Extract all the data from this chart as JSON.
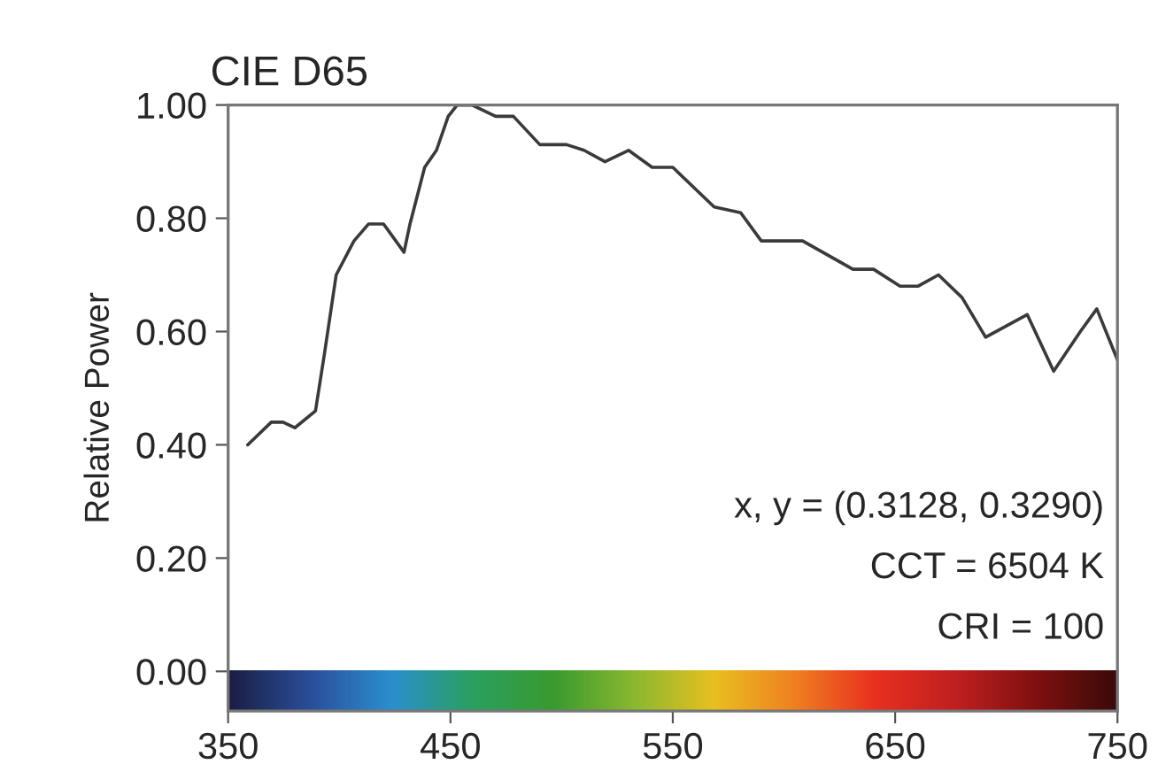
{
  "chart_data": {
    "type": "line",
    "title": "CIE D65",
    "ylabel": "Relative Power",
    "x": [
      358.8,
      369.4,
      374.7,
      380,
      389.3,
      393.3,
      398.6,
      406.6,
      413.2,
      419.9,
      429.1,
      431.8,
      438.4,
      443.7,
      449,
      453,
      459.7,
      470.3,
      478.3,
      490.2,
      502.2,
      510.1,
      519.5,
      530.1,
      540.7,
      550,
      568.6,
      580.5,
      589.8,
      608.4,
      631,
      640.3,
      652.2,
      660.2,
      669.5,
      680.1,
      690.7,
      709.4,
      721.3,
      733.3,
      740.7,
      750
    ],
    "series": [
      {
        "color": "#3a3a3a",
        "values": [
          0.4,
          0.44,
          0.44,
          0.43,
          0.46,
          0.56,
          0.7,
          0.76,
          0.79,
          0.79,
          0.74,
          0.79,
          0.89,
          0.92,
          0.98,
          1.0,
          1.0,
          0.98,
          0.98,
          0.93,
          0.93,
          0.92,
          0.9,
          0.92,
          0.89,
          0.89,
          0.82,
          0.81,
          0.76,
          0.76,
          0.71,
          0.71,
          0.68,
          0.68,
          0.7,
          0.66,
          0.59,
          0.63,
          0.53,
          0.6,
          0.64,
          0.55
        ]
      }
    ],
    "xlim": [
      350,
      750
    ],
    "xticks": [
      350,
      450,
      550,
      650,
      750
    ],
    "ylim": [
      -0.07,
      1.0
    ],
    "yticks": [
      {
        "value": 0,
        "label": "0.00"
      },
      {
        "value": 0.2,
        "label": "0.20"
      },
      {
        "value": 0.4,
        "label": "0.40"
      },
      {
        "value": 0.6,
        "label": "0.60"
      },
      {
        "value": 0.8,
        "label": "0.80"
      },
      {
        "value": 1.0,
        "label": "1.00"
      }
    ],
    "annotations": [
      "x, y = (0.3128, 0.3290)",
      "CCT = 6504 K",
      "CRI = 100"
    ],
    "grid": false,
    "legend": false,
    "marker": "none",
    "line_style": "solid"
  }
}
